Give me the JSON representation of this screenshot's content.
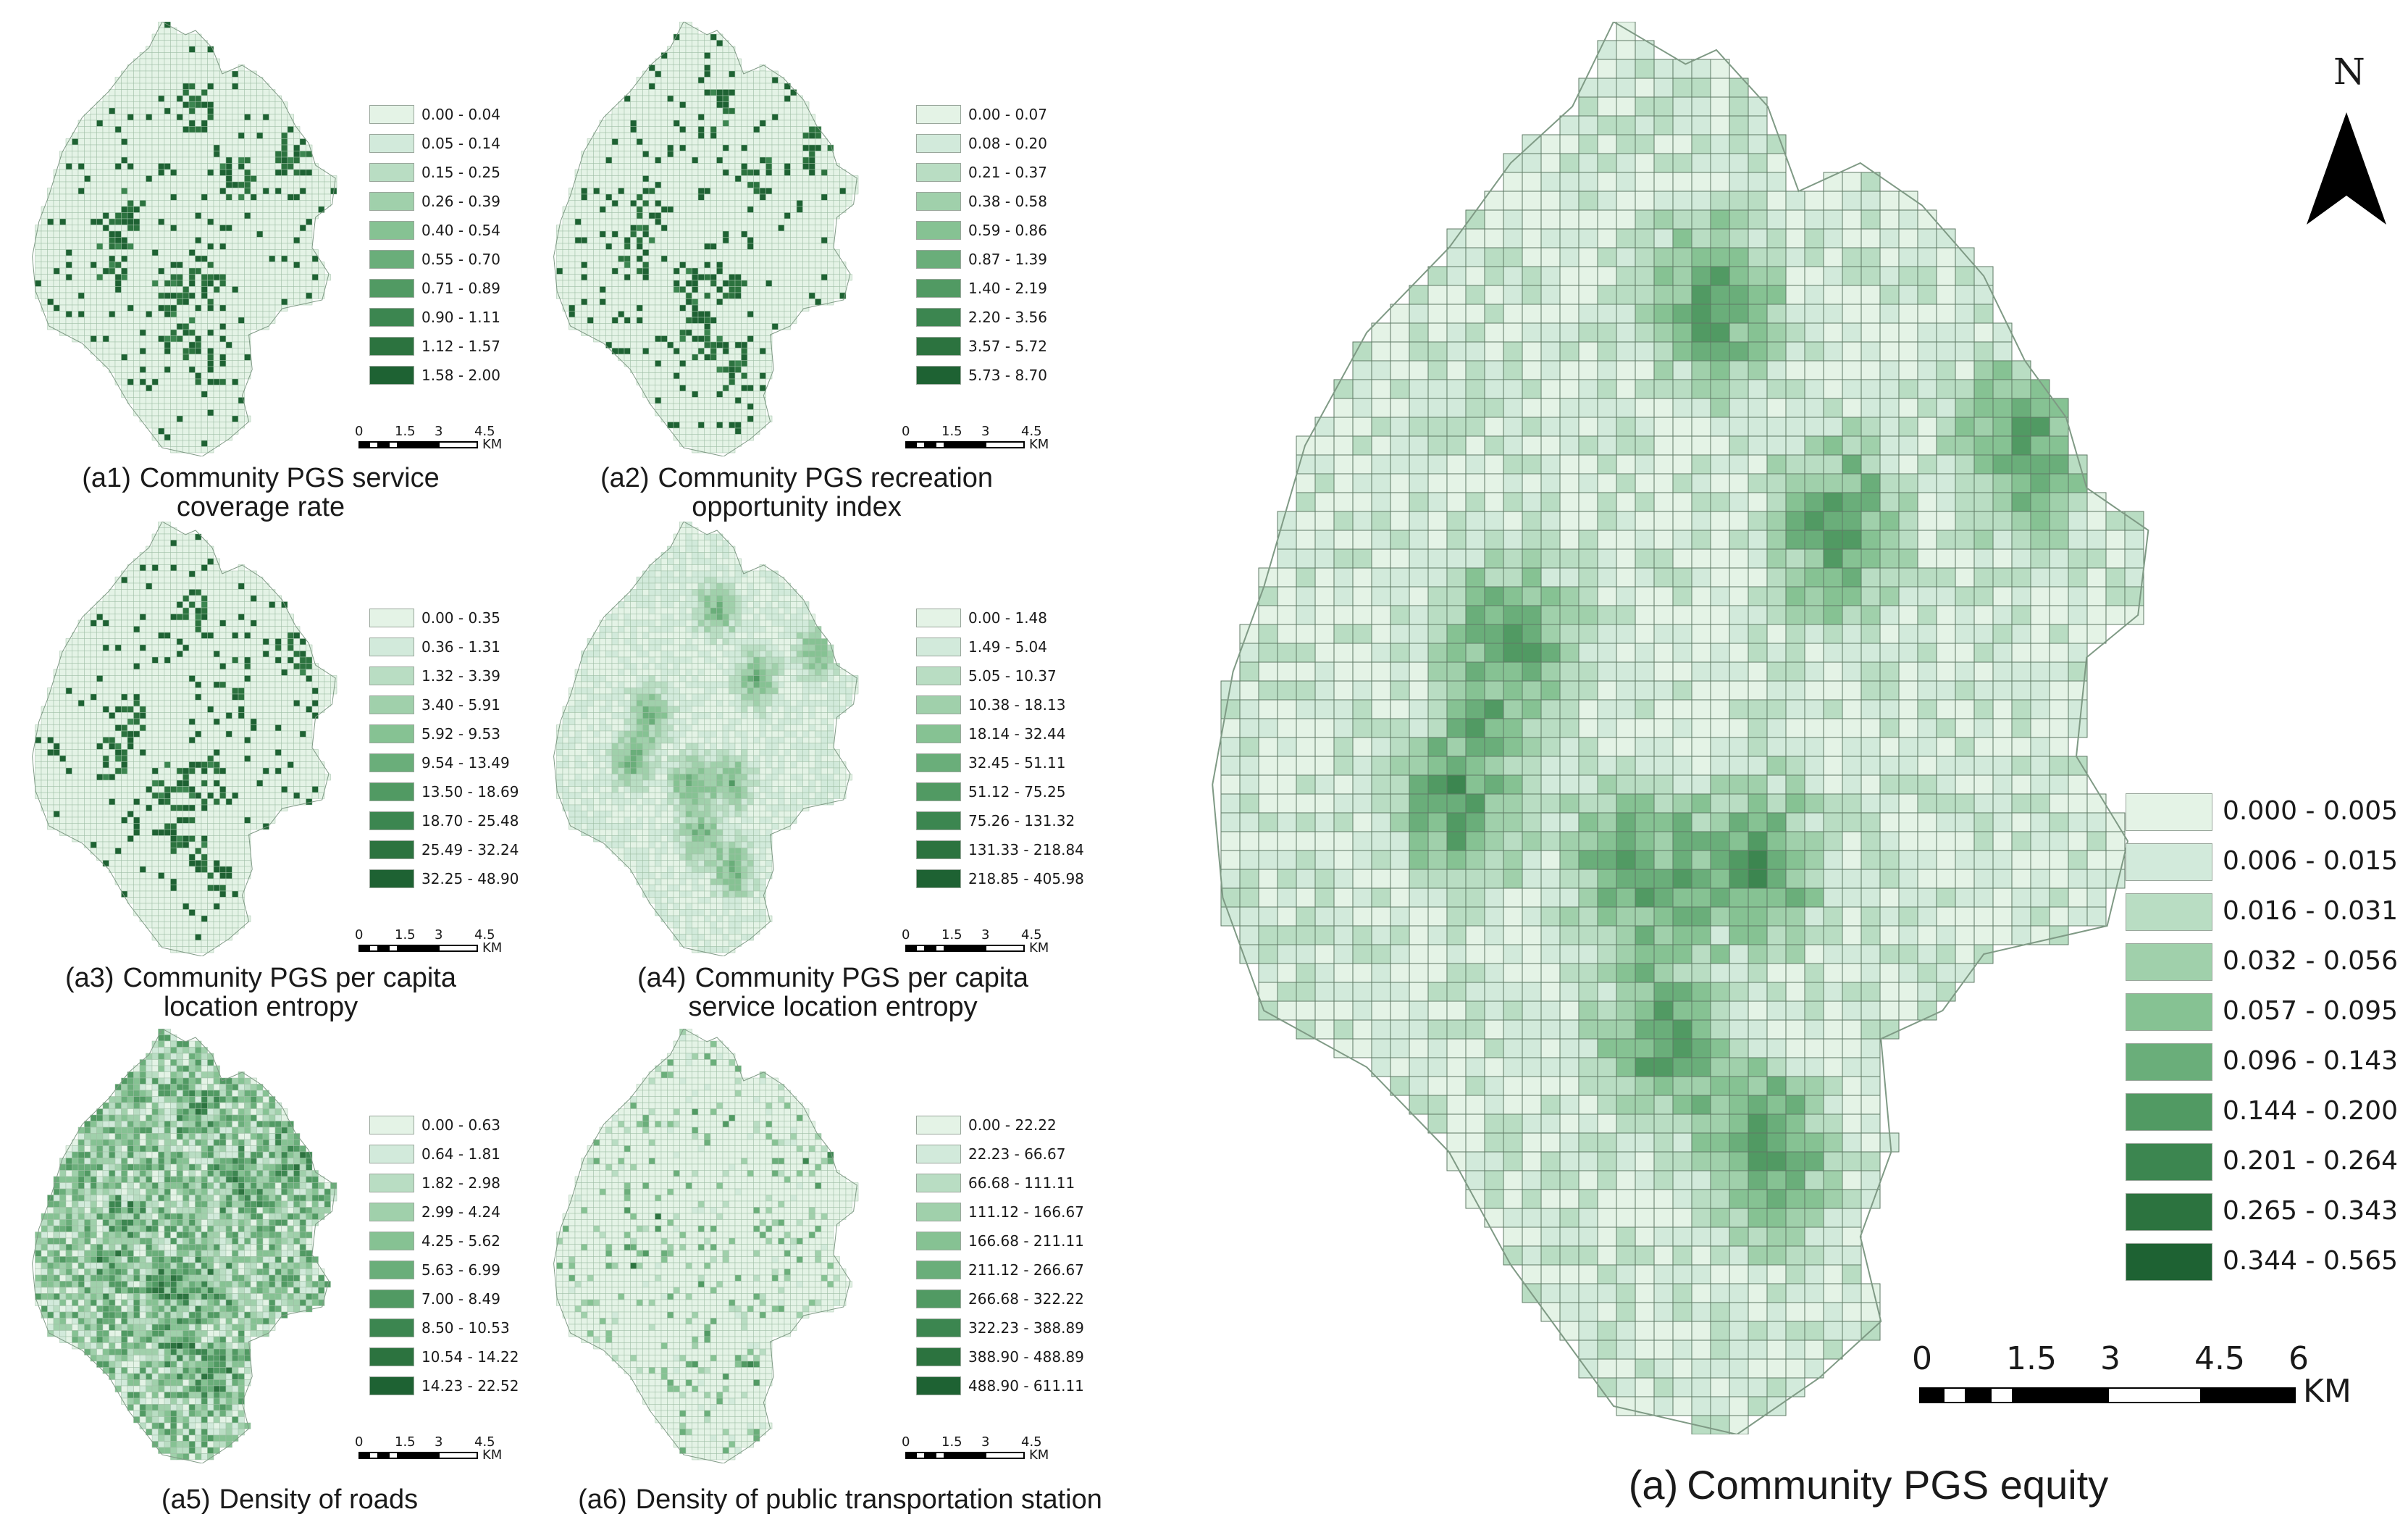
{
  "panels": {
    "a1": {
      "id": "(a1)",
      "title_line1": "Community PGS service",
      "title_line2": "coverage rate",
      "legend": [
        "0.00 - 0.04",
        "0.05 - 0.14",
        "0.15 - 0.25",
        "0.26 - 0.39",
        "0.40 - 0.54",
        "0.55 - 0.70",
        "0.71 - 0.89",
        "0.90 - 1.11",
        "1.12 - 1.57",
        "1.58 - 2.00"
      ]
    },
    "a2": {
      "id": "(a2)",
      "title_line1": "Community PGS recreation",
      "title_line2": "opportunity index",
      "legend": [
        "0.00 - 0.07",
        "0.08 - 0.20",
        "0.21 - 0.37",
        "0.38 - 0.58",
        "0.59 - 0.86",
        "0.87 - 1.39",
        "1.40 - 2.19",
        "2.20 - 3.56",
        "3.57 - 5.72",
        "5.73 - 8.70"
      ]
    },
    "a3": {
      "id": "(a3)",
      "title_line1": "Community PGS per capita",
      "title_line2": "location entropy",
      "legend": [
        "0.00 - 0.35",
        "0.36 - 1.31",
        "1.32 - 3.39",
        "3.40 - 5.91",
        "5.92 - 9.53",
        "9.54 - 13.49",
        "13.50 - 18.69",
        "18.70 - 25.48",
        "25.49 - 32.24",
        "32.25 - 48.90"
      ]
    },
    "a4": {
      "id": "(a4)",
      "title_line1": "Community PGS per capita",
      "title_line2": "service location entropy",
      "legend": [
        "0.00 - 1.48",
        "1.49 - 5.04",
        "5.05 - 10.37",
        "10.38 - 18.13",
        "18.14 - 32.44",
        "32.45 - 51.11",
        "51.12 - 75.25",
        "75.26 - 131.32",
        "131.33 - 218.84",
        "218.85 - 405.98"
      ]
    },
    "a5": {
      "id": "(a5)",
      "title_line1": "Density of roads",
      "title_line2": "",
      "legend": [
        "0.00 - 0.63",
        "0.64 - 1.81",
        "1.82 - 2.98",
        "2.99 - 4.24",
        "4.25 - 5.62",
        "5.63 - 6.99",
        "7.00 - 8.49",
        "8.50 - 10.53",
        "10.54 - 14.22",
        "14.23 - 22.52"
      ]
    },
    "a6": {
      "id": "(a6)",
      "title_line1": "Density of public transportation station",
      "title_line2": "",
      "legend": [
        "0.00 - 22.22",
        "22.23 - 66.67",
        "66.68 - 111.11",
        "111.12 - 166.67",
        "166.68 - 211.11",
        "211.12 - 266.67",
        "266.68 - 322.22",
        "322.23 - 388.89",
        "388.90 - 488.89",
        "488.90 - 611.11"
      ]
    },
    "main": {
      "id": "(a)",
      "title_line1": "Community PGS equity",
      "legend": [
        "0.000 - 0.005",
        "0.006 - 0.015",
        "0.016 - 0.031",
        "0.032 - 0.056",
        "0.057 - 0.095",
        "0.096 - 0.143",
        "0.144 - 0.200",
        "0.201 - 0.264",
        "0.265 - 0.343",
        "0.344 - 0.565"
      ]
    }
  },
  "scale": {
    "ticks": [
      "0",
      "1.5",
      "3",
      "4.5",
      "6"
    ],
    "small_ticks": [
      "0",
      "1.5",
      "3",
      "4.5"
    ],
    "unit": "KM"
  },
  "north_label": "N",
  "colors": {
    "classes": [
      "#e4f3e6",
      "#d2eadb",
      "#b9ddc3",
      "#a0d0ab",
      "#86c293",
      "#6aae7a",
      "#519a63",
      "#3c8650",
      "#2c733f",
      "#1e6233"
    ],
    "grid_line": "#5f7a65"
  }
}
